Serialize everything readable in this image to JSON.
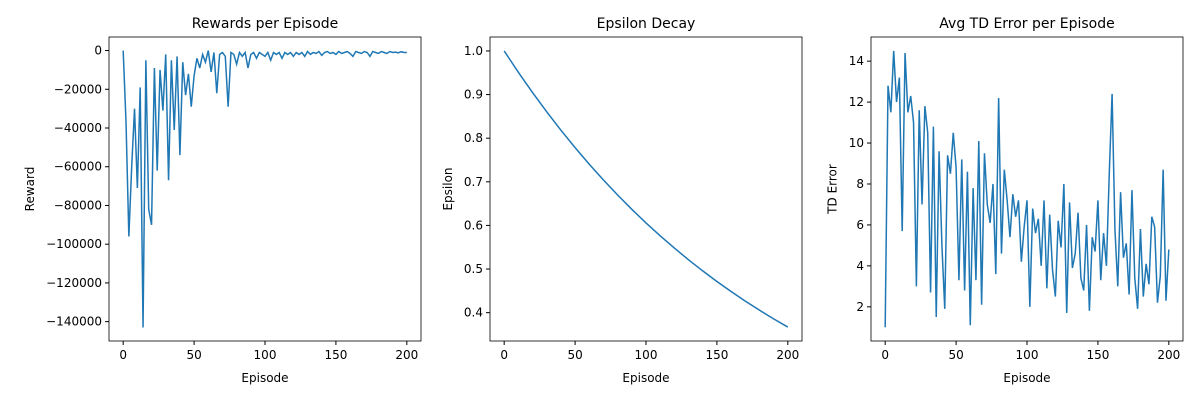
{
  "chart_data": [
    {
      "type": "line",
      "title": "Rewards per Episode",
      "xlabel": "Episode",
      "ylabel": "Reward",
      "xlim": [
        -10,
        210
      ],
      "ylim": [
        -150000,
        7000
      ],
      "xticks": [
        0,
        50,
        100,
        150,
        200
      ],
      "yticks": [
        {
          "value": 0,
          "label": "0"
        },
        {
          "value": -20000,
          "label": "−20000"
        },
        {
          "value": -40000,
          "label": "−40000"
        },
        {
          "value": -60000,
          "label": "−60000"
        },
        {
          "value": -80000,
          "label": "−80000"
        },
        {
          "value": -100000,
          "label": "−100000"
        },
        {
          "value": -120000,
          "label": "−120000"
        },
        {
          "value": -140000,
          "label": "−140000"
        }
      ],
      "x": [
        0,
        2,
        4,
        6,
        8,
        10,
        12,
        14,
        16,
        18,
        20,
        22,
        24,
        26,
        28,
        30,
        32,
        34,
        36,
        38,
        40,
        42,
        44,
        46,
        48,
        50,
        52,
        54,
        56,
        58,
        60,
        62,
        64,
        66,
        68,
        70,
        72,
        74,
        76,
        78,
        80,
        82,
        84,
        86,
        88,
        90,
        92,
        94,
        96,
        98,
        100,
        102,
        104,
        106,
        108,
        110,
        112,
        114,
        116,
        118,
        120,
        122,
        124,
        126,
        128,
        130,
        132,
        134,
        136,
        138,
        140,
        142,
        144,
        146,
        148,
        150,
        152,
        154,
        156,
        158,
        160,
        162,
        164,
        166,
        168,
        170,
        172,
        174,
        176,
        178,
        180,
        182,
        184,
        186,
        188,
        190,
        192,
        194,
        196,
        198,
        200
      ],
      "series": [
        {
          "name": "Reward",
          "color": "#1f77b4",
          "values": [
            0,
            -37000,
            -96000,
            -60000,
            -30000,
            -71000,
            -19000,
            -143000,
            -5000,
            -82000,
            -90000,
            -9000,
            -62000,
            -10000,
            -31000,
            -2000,
            -67000,
            -5000,
            -41000,
            -3000,
            -54000,
            -6000,
            -23000,
            -12000,
            -29000,
            -13000,
            -4000,
            -9000,
            -2000,
            -6000,
            0,
            -11000,
            -1000,
            -22000,
            -2000,
            -1000,
            -3000,
            -29000,
            -1000,
            -2000,
            -7000,
            -1000,
            -3000,
            -1000,
            -9000,
            -2000,
            -1000,
            -4000,
            -1000,
            -2000,
            -3000,
            -1000,
            -5000,
            -1000,
            -2000,
            -1000,
            -4000,
            -1000,
            -2000,
            -1000,
            -3000,
            -1000,
            -2000,
            -1000,
            -3000,
            -500,
            -2000,
            -1000,
            -1500,
            -500,
            -2500,
            -1000,
            -500,
            -1500,
            -1000,
            -2000,
            -500,
            -1500,
            -1000,
            -500,
            -1500,
            -3000,
            -500,
            -1000,
            -1500,
            -500,
            -1000,
            -3000,
            -500,
            -1000,
            -1500,
            -500,
            -1000,
            -1500,
            -500,
            -1000,
            -800,
            -1200,
            -600,
            -1000,
            -1000
          ]
        }
      ]
    },
    {
      "type": "line",
      "title": "Epsilon Decay",
      "xlabel": "Episode",
      "ylabel": "Epsilon",
      "xlim": [
        -10,
        210
      ],
      "ylim": [
        0.335,
        1.032
      ],
      "xticks": [
        0,
        50,
        100,
        150,
        200
      ],
      "yticks": [
        0.4,
        0.5,
        0.6,
        0.7,
        0.8,
        0.9,
        {
          "value": 1.0,
          "label": "1.0"
        }
      ],
      "x": [
        0,
        10,
        20,
        30,
        40,
        50,
        60,
        70,
        80,
        90,
        100,
        110,
        120,
        130,
        140,
        150,
        160,
        170,
        180,
        190,
        200
      ],
      "series": [
        {
          "name": "Epsilon",
          "color": "#1f77b4",
          "values": [
            1.0,
            0.9511,
            0.9046,
            0.8604,
            0.8183,
            0.7783,
            0.7403,
            0.7041,
            0.6697,
            0.6369,
            0.6058,
            0.5762,
            0.548,
            0.5212,
            0.4957,
            0.4715,
            0.4484,
            0.4265,
            0.4057,
            0.3858,
            0.367
          ]
        }
      ]
    },
    {
      "type": "line",
      "title": "Avg TD Error per Episode",
      "xlabel": "Episode",
      "ylabel": "TD Error",
      "xlim": [
        -10,
        210
      ],
      "ylim": [
        0.33,
        15.18
      ],
      "xticks": [
        0,
        50,
        100,
        150,
        200
      ],
      "yticks": [
        2,
        4,
        6,
        8,
        10,
        12,
        14
      ],
      "x": [
        0,
        2,
        4,
        6,
        8,
        10,
        12,
        14,
        16,
        18,
        20,
        22,
        24,
        26,
        28,
        30,
        32,
        34,
        36,
        38,
        40,
        42,
        44,
        46,
        48,
        50,
        52,
        54,
        56,
        58,
        60,
        62,
        64,
        66,
        68,
        70,
        72,
        74,
        76,
        78,
        80,
        82,
        84,
        86,
        88,
        90,
        92,
        94,
        96,
        98,
        100,
        102,
        104,
        106,
        108,
        110,
        112,
        114,
        116,
        118,
        120,
        122,
        124,
        126,
        128,
        130,
        132,
        134,
        136,
        138,
        140,
        142,
        144,
        146,
        148,
        150,
        152,
        154,
        156,
        158,
        160,
        162,
        164,
        166,
        168,
        170,
        172,
        174,
        176,
        178,
        180,
        182,
        184,
        186,
        188,
        190,
        192,
        194,
        196,
        198,
        200
      ],
      "series": [
        {
          "name": "TD Error",
          "color": "#1f77b4",
          "values": [
            1.0,
            12.8,
            11.5,
            14.5,
            12.0,
            13.2,
            5.7,
            14.4,
            11.5,
            12.3,
            11.0,
            3.0,
            11.6,
            7.0,
            11.8,
            10.5,
            2.7,
            10.8,
            1.5,
            9.6,
            5.0,
            1.9,
            9.4,
            8.5,
            10.5,
            8.8,
            3.3,
            9.2,
            2.8,
            8.6,
            1.1,
            7.8,
            3.3,
            10.1,
            2.1,
            9.5,
            7.0,
            6.1,
            8.0,
            3.6,
            12.2,
            4.6,
            8.7,
            7.2,
            5.4,
            7.5,
            6.4,
            7.2,
            4.2,
            5.9,
            7.2,
            2.0,
            6.8,
            5.6,
            6.3,
            4.0,
            7.2,
            2.9,
            6.5,
            3.8,
            2.5,
            6.2,
            4.9,
            8.0,
            1.7,
            7.1,
            3.9,
            4.6,
            6.6,
            3.4,
            2.8,
            6.0,
            1.8,
            5.4,
            4.7,
            7.2,
            3.3,
            5.6,
            4.0,
            8.5,
            12.4,
            5.8,
            3.0,
            7.6,
            4.4,
            5.1,
            2.6,
            7.7,
            3.4,
            1.9,
            5.8,
            2.5,
            4.1,
            3.1,
            6.4,
            5.9,
            2.2,
            3.5,
            8.7,
            2.3,
            4.8
          ]
        }
      ]
    }
  ]
}
